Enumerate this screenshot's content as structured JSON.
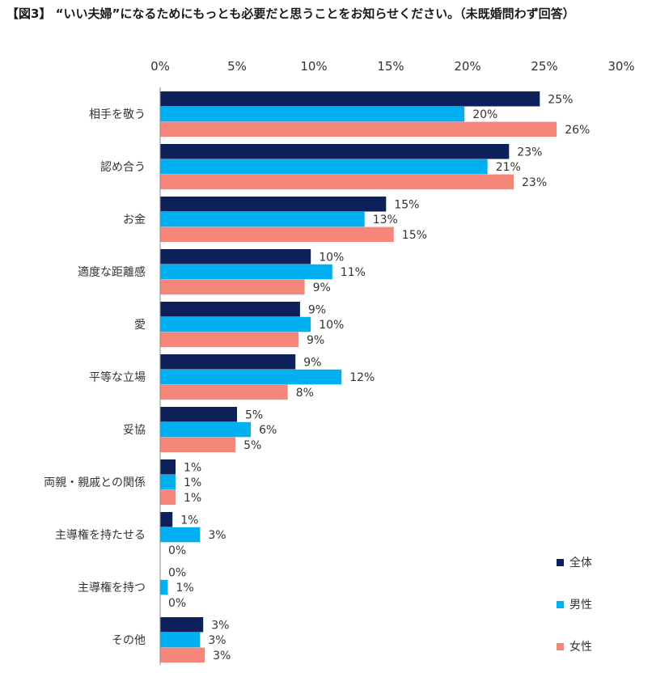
{
  "title": "【図3】 “いい夫婦”になるためにもっとも必要だと思うことをお知らせください。（未既婚問わず回答）",
  "chart_data": {
    "type": "bar",
    "orientation": "horizontal",
    "title": "【図3】 “いい夫婦”になるためにもっとも必要だと思うことをお知らせください。（未既婚問わず回答）",
    "xlim": [
      0,
      30
    ],
    "x_ticks": [
      "0%",
      "5%",
      "10%",
      "15%",
      "20%",
      "25%",
      "30%"
    ],
    "x_axis_position": "top",
    "grid": false,
    "legend_position": "bottom-right",
    "categories": [
      "相手を敬う",
      "認め合う",
      "お金",
      "適度な距離感",
      "愛",
      "平等な立場",
      "妥協",
      "両親・親戚との関係",
      "主導権を持たせる",
      "主導権を持つ",
      "その他"
    ],
    "series": [
      {
        "name": "全体",
        "color": "#0d2059",
        "values": [
          24.7,
          22.7,
          14.7,
          9.8,
          9.1,
          8.8,
          5.0,
          1.0,
          0.8,
          0,
          2.8
        ],
        "labels": [
          "25%",
          "23%",
          "15%",
          "10%",
          "9%",
          "9%",
          "5%",
          "1%",
          "1%",
          "0%",
          "3%"
        ]
      },
      {
        "name": "男性",
        "color": "#00b0f0",
        "values": [
          19.8,
          21.3,
          13.3,
          11.2,
          9.8,
          11.8,
          5.9,
          1.0,
          2.6,
          0.5,
          2.6
        ],
        "labels": [
          "20%",
          "21%",
          "13%",
          "11%",
          "10%",
          "12%",
          "6%",
          "1%",
          "3%",
          "1%",
          "3%"
        ]
      },
      {
        "name": "女性",
        "color": "#f4877a",
        "values": [
          25.8,
          23.0,
          15.2,
          9.4,
          9.0,
          8.3,
          4.9,
          1.0,
          0,
          0,
          2.9
        ],
        "labels": [
          "26%",
          "23%",
          "15%",
          "9%",
          "9%",
          "8%",
          "5%",
          "1%",
          "0%",
          "0%",
          "3%"
        ]
      }
    ]
  }
}
